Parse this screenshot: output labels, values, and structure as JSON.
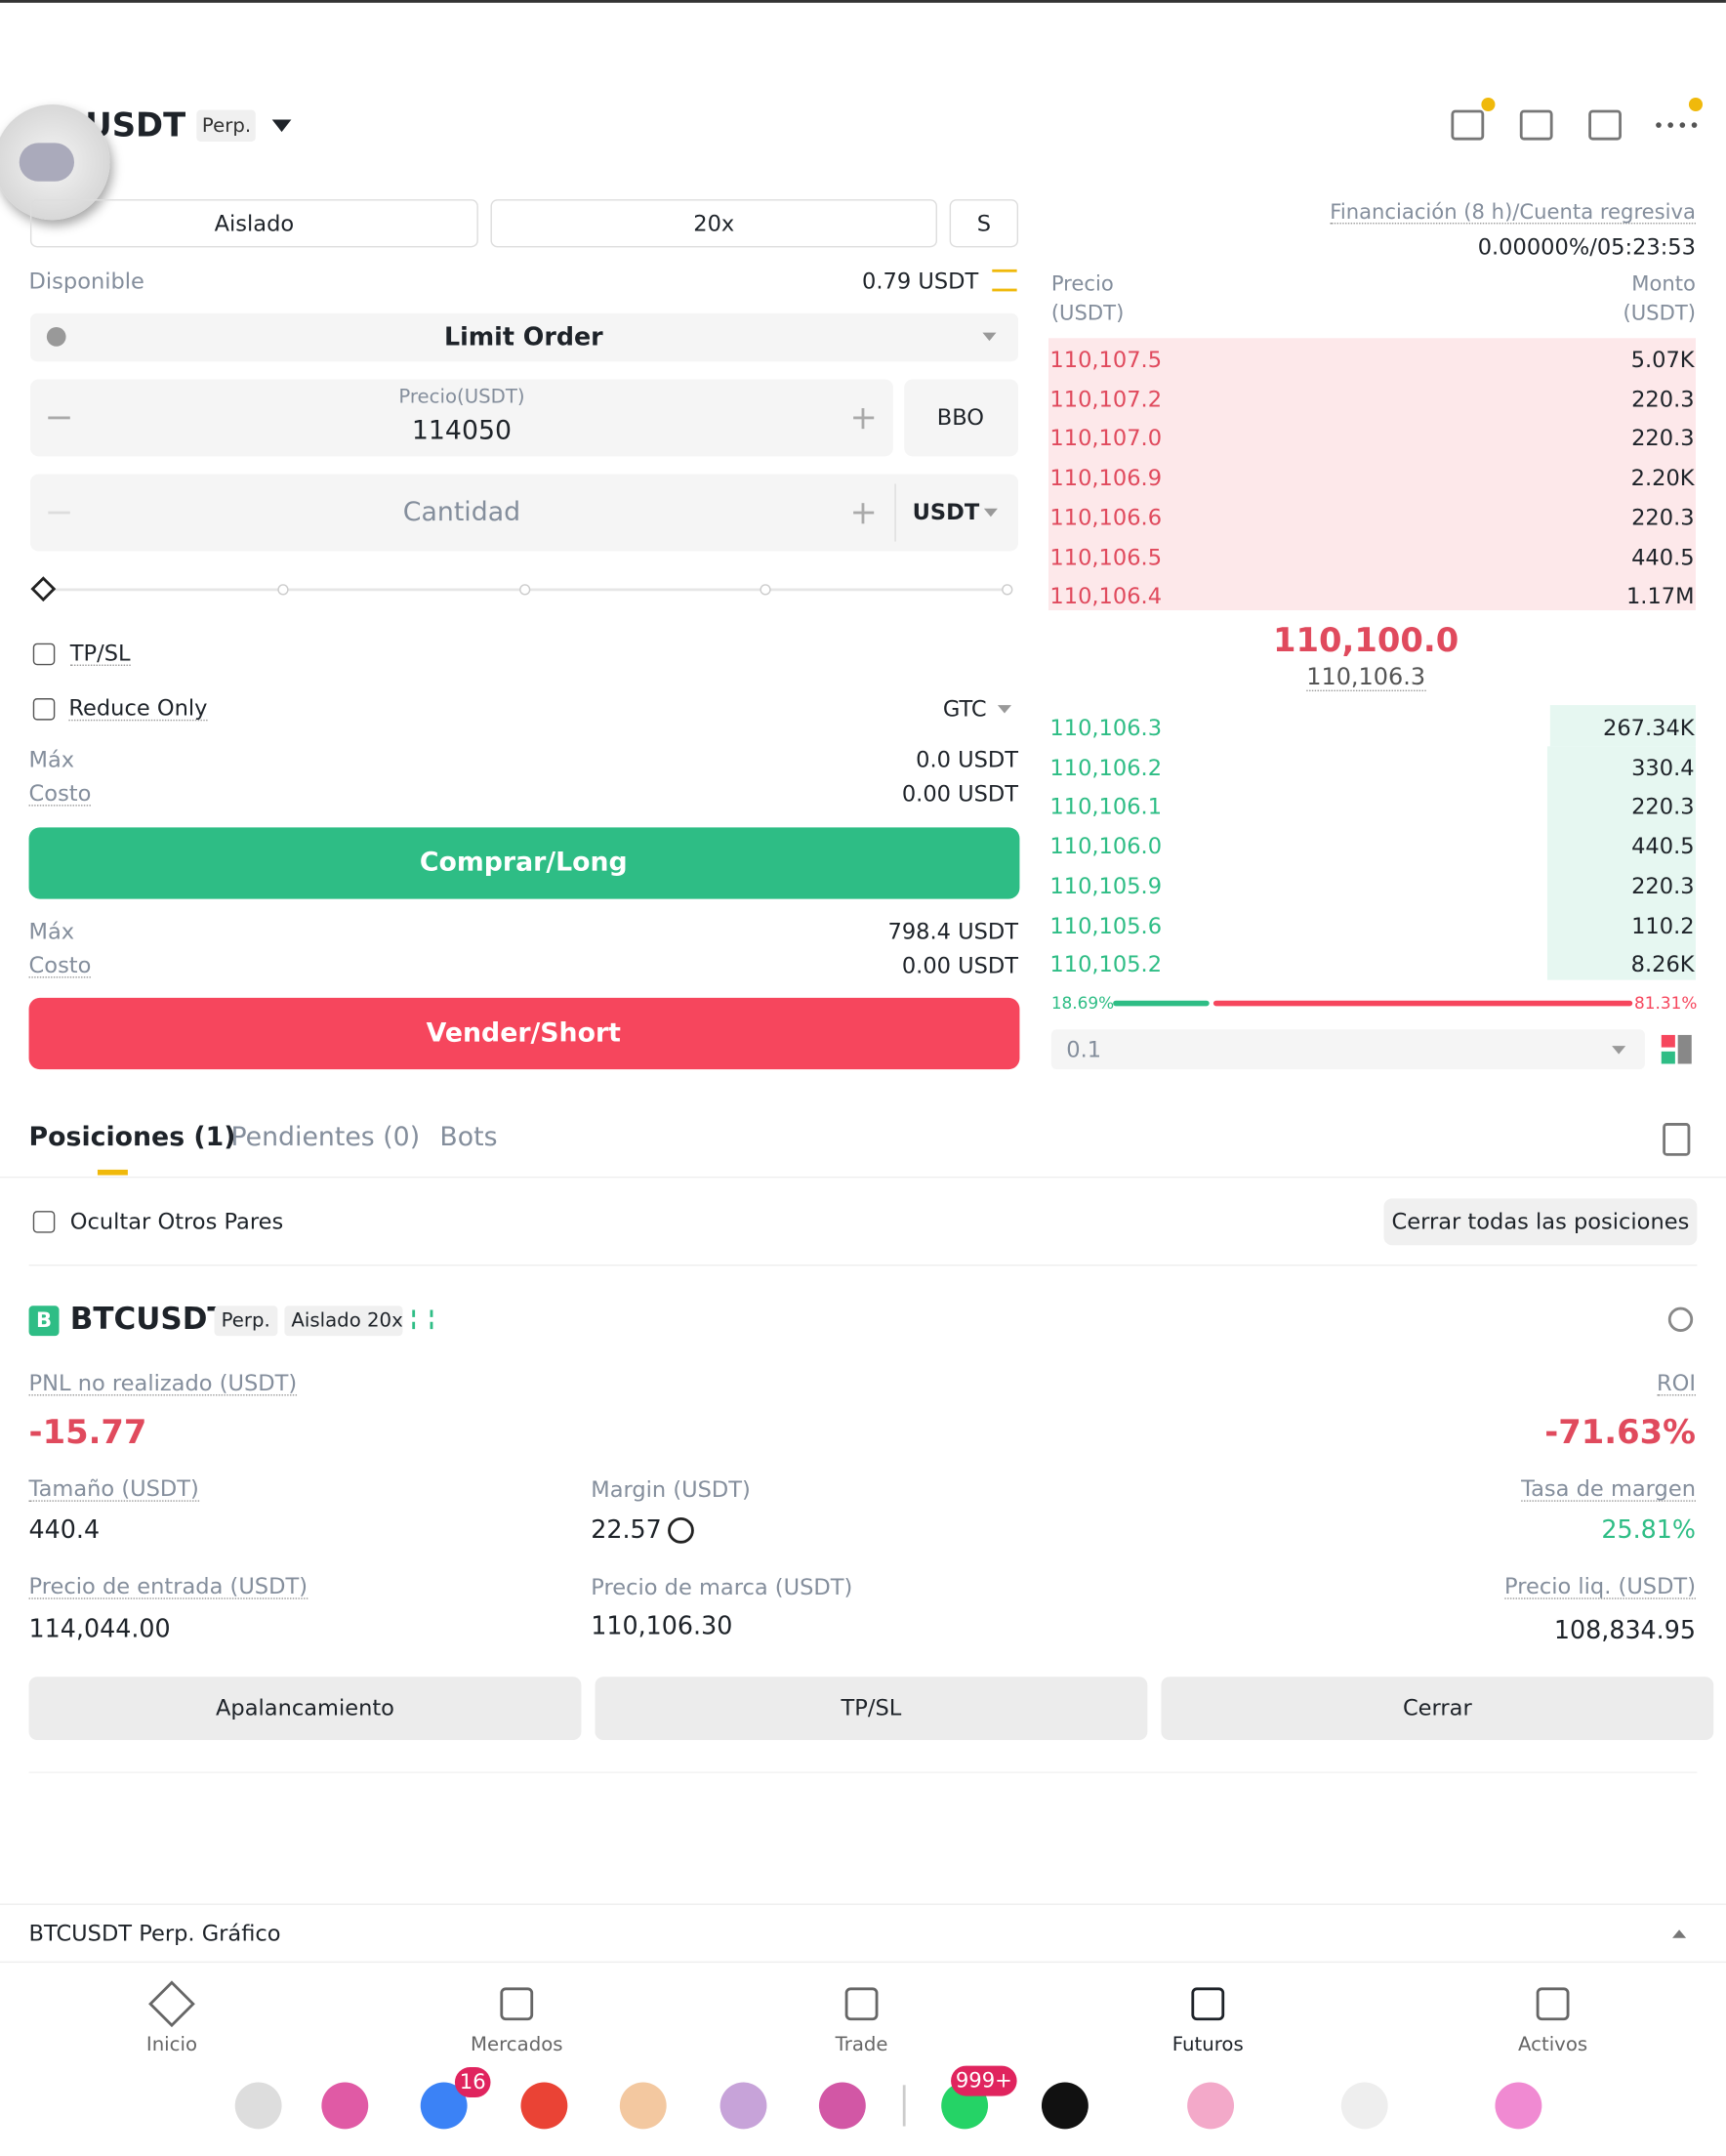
{
  "header": {
    "pair": "USDT",
    "tag": "Perp."
  },
  "order_form": {
    "margin_mode": "Aislado",
    "leverage": "20x",
    "position_mode": "S",
    "available_label": "Disponible",
    "available": "0.79 USDT",
    "order_type": "Limit Order",
    "price_label": "Precio(USDT)",
    "price": "114050",
    "bbo": "BBO",
    "quantity_placeholder": "Cantidad",
    "quantity_unit": "USDT",
    "tpsl": "TP/SL",
    "reduce_only": "Reduce Only",
    "time_in_force": "GTC",
    "buy": {
      "max_label": "Máx",
      "max": "0.0 USDT",
      "cost_label": "Costo",
      "cost": "0.00 USDT",
      "button": "Comprar/Long"
    },
    "sell": {
      "max_label": "Máx",
      "max": "798.4 USDT",
      "cost_label": "Costo",
      "cost": "0.00 USDT",
      "button": "Vender/Short"
    }
  },
  "orderbook": {
    "funding_label": "Financiación (8 h)/Cuenta regresiva",
    "funding": "0.00000%/05:23:53",
    "price_header": [
      "Precio",
      "(USDT)"
    ],
    "amount_header": [
      "Monto",
      "(USDT)"
    ],
    "asks": [
      [
        "110,107.5",
        "5.07K"
      ],
      [
        "110,107.2",
        "220.3"
      ],
      [
        "110,107.0",
        "220.3"
      ],
      [
        "110,106.9",
        "2.20K"
      ],
      [
        "110,106.6",
        "220.3"
      ],
      [
        "110,106.5",
        "440.5"
      ],
      [
        "110,106.4",
        "1.17M"
      ]
    ],
    "last_price": "110,100.0",
    "mark_price": "110,106.3",
    "bids": [
      [
        "110,106.3",
        "267.34K"
      ],
      [
        "110,106.2",
        "330.4"
      ],
      [
        "110,106.1",
        "220.3"
      ],
      [
        "110,106.0",
        "440.5"
      ],
      [
        "110,105.9",
        "220.3"
      ],
      [
        "110,105.6",
        "110.2"
      ],
      [
        "110,105.2",
        "8.26K"
      ]
    ],
    "buy_ratio": "18.69%",
    "sell_ratio": "81.31%",
    "precision": "0.1"
  },
  "tabs": [
    "Posiciones (1)",
    "Pendientes (0)",
    "Bots"
  ],
  "hide_others": "Ocultar Otros Pares",
  "close_all": "Cerrar todas las posiciones",
  "position": {
    "badge": "B",
    "symbol": "BTCUSDT",
    "tag": "Perp.",
    "mode": "Aislado 20x",
    "pnl_label": "PNL no realizado (USDT)",
    "pnl": "-15.77",
    "roi_label": "ROI",
    "roi": "-71.63%",
    "size_label": "Tamaño (USDT)",
    "size": "440.4",
    "margin_label": "Margin (USDT)",
    "margin": "22.57",
    "margin_rate_label": "Tasa de margen",
    "margin_rate": "25.81%",
    "entry_label": "Precio de entrada (USDT)",
    "entry": "114,044.00",
    "mark_label": "Precio de marca (USDT)",
    "mark": "110,106.30",
    "liq_label": "Precio liq. (USDT)",
    "liq": "108,834.95",
    "buttons": [
      "Apalancamiento",
      "TP/SL",
      "Cerrar"
    ]
  },
  "chart_bar": "BTCUSDT Perp. Gráfico",
  "nav": [
    "Inicio",
    "Mercados",
    "Trade",
    "Futuros",
    "Activos"
  ],
  "dock_badges": [
    "16",
    "999+"
  ]
}
